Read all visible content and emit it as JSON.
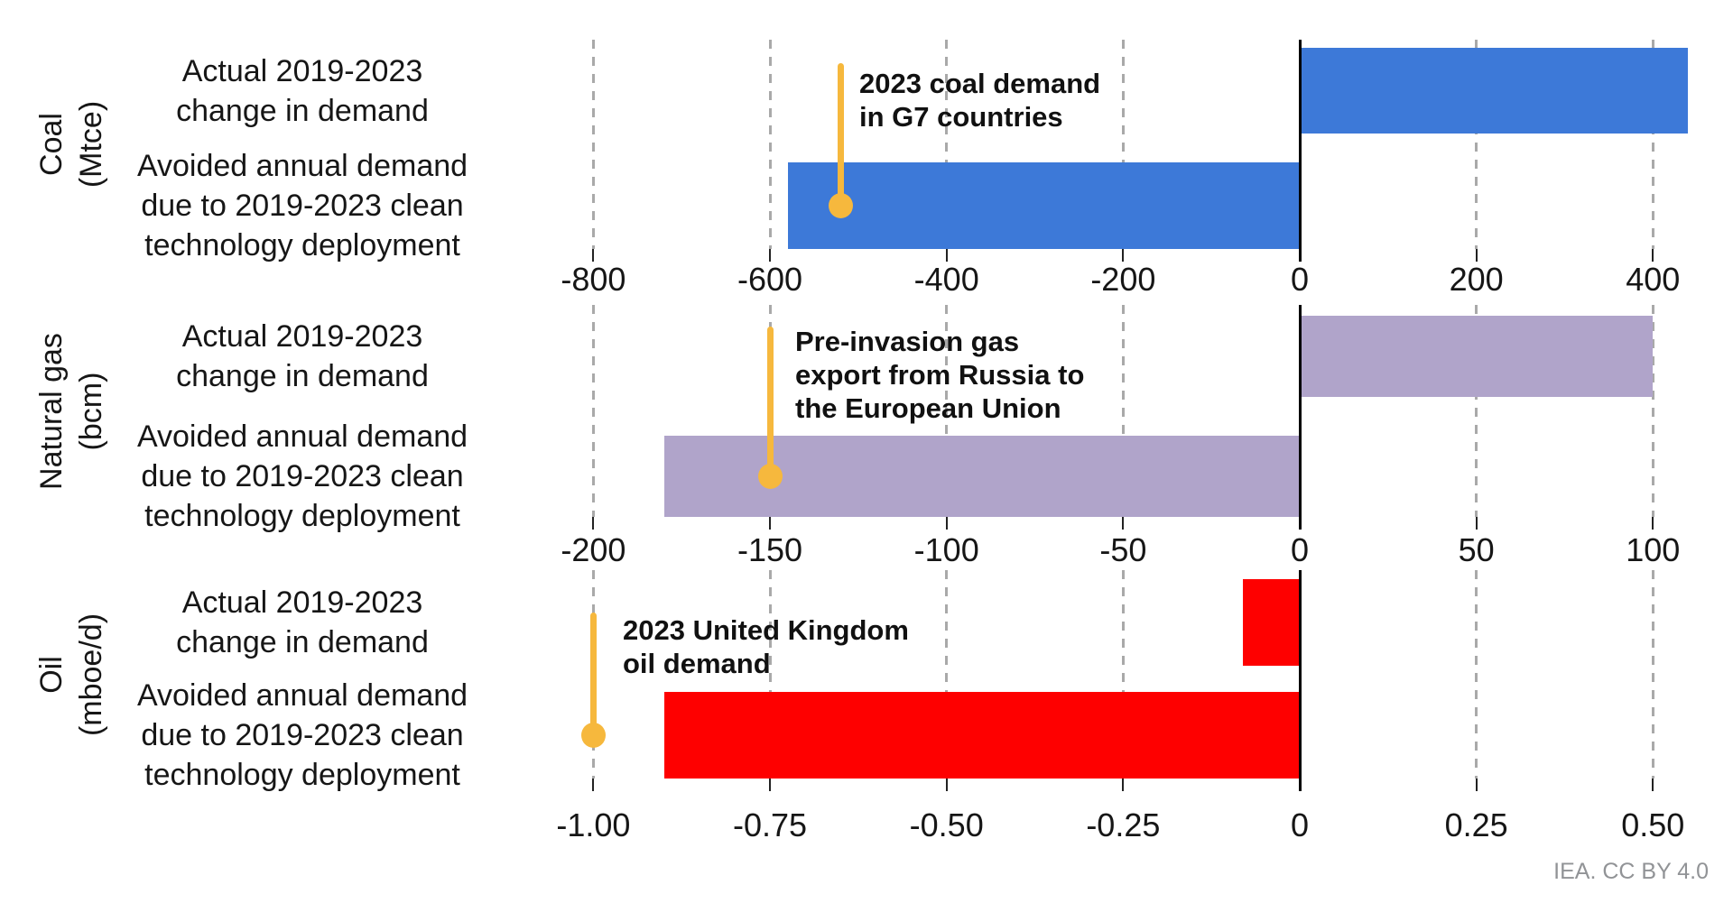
{
  "credit": "IEA. CC BY 4.0",
  "colors": {
    "coal_bar": "#3d79d8",
    "gas_bar": "#b0a4ca",
    "oil_bar": "#fe0000",
    "marker": "#f6b83d",
    "gridline": "#a9a9a9",
    "axis_line": "#000000",
    "text": "#161616",
    "credit_text": "#919396"
  },
  "row_labels": {
    "actual": [
      "Actual 2019-2023",
      "change in demand"
    ],
    "avoided": [
      "Avoided annual demand",
      "due to 2019-2023 clean",
      "technology deployment"
    ]
  },
  "chart_data": [
    {
      "id": "coal",
      "type": "bar",
      "orientation": "horizontal",
      "group_label_lines": [
        "Coal",
        "(Mtce)"
      ],
      "unit": "Mtce",
      "categories": [
        "Actual 2019-2023 change in demand",
        "Avoided annual demand due to 2019-2023 clean technology deployment"
      ],
      "values": [
        440,
        -580
      ],
      "bar_color_key": "coal_bar",
      "axis": {
        "min": -920,
        "max": 460,
        "grid": "dashed-vertical",
        "ticks": [
          -800,
          -600,
          -400,
          -200,
          0,
          200,
          400
        ],
        "tick_labels": [
          "-800",
          "-600",
          "-400",
          "-200",
          "0",
          "200",
          "400"
        ]
      },
      "marker": {
        "value": -520,
        "label": "2023 coal demand in G7 countries",
        "label_lines": [
          "2023 coal demand",
          "in G7 countries"
        ]
      }
    },
    {
      "id": "natural-gas",
      "type": "bar",
      "orientation": "horizontal",
      "group_label_lines": [
        "Natural gas",
        "(bcm)"
      ],
      "unit": "bcm",
      "categories": [
        "Actual 2019-2023 change in demand",
        "Avoided annual demand due to 2019-2023 clean technology deployment"
      ],
      "values": [
        100,
        -180
      ],
      "bar_color_key": "gas_bar",
      "axis": {
        "min": -230,
        "max": 115,
        "grid": "dashed-vertical",
        "ticks": [
          -200,
          -150,
          -100,
          -50,
          0,
          50,
          100
        ],
        "tick_labels": [
          "-200",
          "-150",
          "-100",
          "-50",
          "0",
          "50",
          "100"
        ]
      },
      "marker": {
        "value": -150,
        "label": "Pre-invasion gas export from Russia to the European Union",
        "label_lines": [
          "Pre-invasion gas",
          "export from Russia to",
          "the European Union"
        ]
      }
    },
    {
      "id": "oil",
      "type": "bar",
      "orientation": "horizontal",
      "group_label_lines": [
        "Oil",
        "(mboe/d)"
      ],
      "unit": "mboe/d",
      "categories": [
        "Actual 2019-2023 change in demand",
        "Avoided annual demand due to 2019-2023 clean technology deployment"
      ],
      "values": [
        -0.08,
        -0.9
      ],
      "bar_color_key": "oil_bar",
      "axis": {
        "min": -1.15,
        "max": 0.575,
        "grid": "dashed-vertical",
        "ticks": [
          -1.0,
          -0.75,
          -0.5,
          -0.25,
          0,
          0.25,
          0.5
        ],
        "tick_labels": [
          "-1.00",
          "-0.75",
          "-0.50",
          "-0.25",
          "0",
          "0.25",
          "0.50"
        ]
      },
      "marker": {
        "value": -1.0,
        "label": "2023 United Kingdom oil demand",
        "label_lines": [
          "2023 United Kingdom",
          "oil demand"
        ]
      }
    }
  ]
}
